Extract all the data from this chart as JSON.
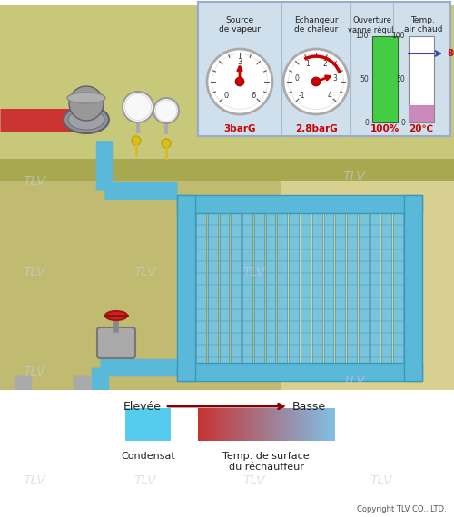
{
  "bg_color": "#e8e8e8",
  "panel_bg": "#cfe0ec",
  "room_bg": "#c8c87a",
  "room_wall_right": "#d4c870",
  "room_wall_left": "#b8ba60",
  "pipe_blue": "#5ab8d8",
  "pipe_gray": "#aaaaaa",
  "heater_blue": "#5ab8d8",
  "heater_fin": "#80c8e0",
  "steam_pipe": "#cc3333",
  "green_bar": "#44cc44",
  "purple_bar": "#cc88cc",
  "title_texts": {
    "source_vapeur": "Source\nde vapeur",
    "echangeur": "Echangeur\nde chaleur",
    "ouverture": "Ouverture\nvanne régul.",
    "temp_air": "Temp.\nair chaud"
  },
  "gauge1_value": "3barG",
  "gauge2_value": "2.8barG",
  "bar1_value": "100%",
  "bar2_value": "20℃",
  "arrow_label_left": "Elevée",
  "arrow_label_right": "Basse",
  "legend_condensat": "Condensat",
  "legend_temp": "Temp. de surface\ndu réchauffeur",
  "copyright": "Copyright TLV CO., LTD.",
  "tlv_watermark": "TLV",
  "watermark_color": "#c8d0dc",
  "text_red": "#cc0000",
  "arrow_red": "#880000",
  "white": "#ffffff",
  "black": "#000000"
}
